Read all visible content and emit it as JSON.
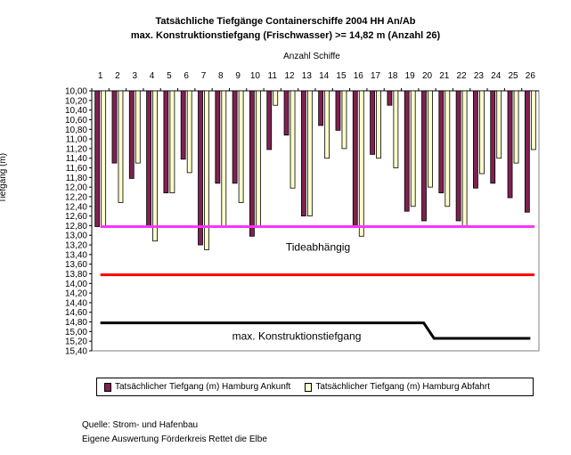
{
  "title_line1": "Tatsächliche Tiefgänge Containerschiffe 2004 HH An/Ab",
  "title_line2": "max. Konstruktionstiefgang (Frischwasser) >= 14,82 m (Anzahl 26)",
  "source_line1": "Quelle: Strom- und Hafenbau",
  "source_line2": "Eigene Auswertung Förderkreis Rettet die Elbe",
  "colors": {
    "arrival": "#7f2150",
    "departure": "#ffffcc",
    "tide_line": "#ff33ff",
    "red_line": "#ff0000",
    "max_line": "#000000"
  },
  "chart_data": {
    "type": "bar",
    "xlabel": "Anzahl Schiffe",
    "ylabel": "Tiefgang (m)",
    "ylim": [
      10.0,
      15.4
    ],
    "y_inverted": true,
    "y_ticks": [
      "10,00",
      "10,20",
      "10,40",
      "10,60",
      "10,80",
      "11,00",
      "11,20",
      "11,40",
      "11,60",
      "11,80",
      "12,00",
      "12,20",
      "12,40",
      "12,60",
      "12,80",
      "13,00",
      "13,20",
      "13,40",
      "13,60",
      "13,80",
      "14,00",
      "14,20",
      "14,40",
      "14,60",
      "14,80",
      "15,00",
      "15,20",
      "15,40"
    ],
    "categories": [
      "1",
      "2",
      "3",
      "4",
      "5",
      "6",
      "7",
      "8",
      "9",
      "10",
      "11",
      "12",
      "13",
      "14",
      "15",
      "16",
      "17",
      "18",
      "19",
      "20",
      "21",
      "22",
      "23",
      "24",
      "25",
      "26"
    ],
    "series": [
      {
        "name": "Tatsächlicher Tiefgang (m) Hamburg Ankunft",
        "values": [
          12.82,
          11.5,
          11.82,
          12.82,
          12.12,
          11.42,
          13.2,
          11.92,
          11.92,
          13.02,
          11.22,
          10.92,
          12.6,
          10.72,
          10.82,
          12.82,
          11.32,
          10.3,
          12.5,
          12.7,
          12.12,
          12.7,
          12.02,
          11.92,
          12.22,
          12.52
        ]
      },
      {
        "name": "Tatsächlicher Tiefgang (m) Hamburg Abfahrt",
        "values": [
          12.82,
          12.32,
          11.5,
          13.12,
          12.12,
          11.7,
          13.3,
          12.82,
          12.32,
          12.82,
          10.3,
          12.02,
          12.6,
          11.4,
          11.2,
          13.02,
          11.4,
          11.6,
          12.4,
          12.0,
          12.4,
          12.82,
          11.72,
          11.4,
          11.5,
          11.22
        ]
      }
    ],
    "lines": [
      {
        "label": "Tideabhängig",
        "y": 12.82
      },
      {
        "label": "",
        "y": 13.82
      },
      {
        "label": "max. Konstruktionstiefgang",
        "points": [
          [
            1,
            14.82
          ],
          [
            19.8,
            14.82
          ],
          [
            20.4,
            15.14
          ],
          [
            26,
            15.14
          ]
        ]
      }
    ]
  }
}
